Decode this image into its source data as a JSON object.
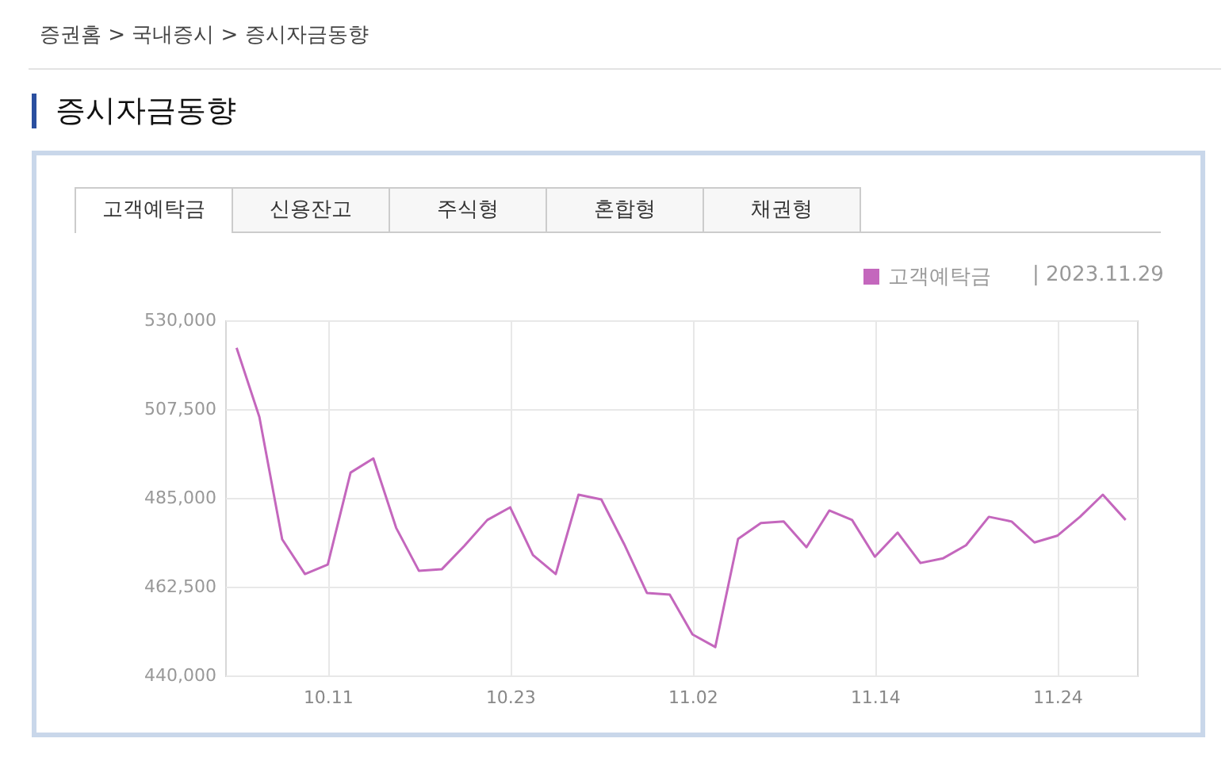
{
  "chart_data": {
    "type": "line",
    "title": "증시자금동향",
    "annotations": [
      "증권홈 > 국내증시 > 증시자금동향",
      "고객예탁금",
      "신용잔고",
      "주식형",
      "혼합형",
      "채권형",
      "|  2023.11.29"
    ],
    "categories": [
      null,
      null,
      null,
      null,
      "10.11",
      null,
      null,
      null,
      null,
      null,
      null,
      null,
      "10.23",
      null,
      null,
      null,
      null,
      null,
      null,
      null,
      "11.02",
      null,
      null,
      null,
      null,
      null,
      null,
      null,
      "11.14",
      null,
      null,
      null,
      null,
      null,
      null,
      null,
      "11.24",
      null,
      null,
      null
    ],
    "series": [
      {
        "name": "고객예탁금",
        "color": "#c467bd",
        "values": [
          523000,
          505500,
          474500,
          465700,
          468100,
          491400,
          495000,
          477400,
          466500,
          466900,
          472900,
          479400,
          482600,
          470500,
          465700,
          485800,
          484600,
          473300,
          460900,
          460500,
          450400,
          447200,
          474600,
          478600,
          479000,
          472500,
          481800,
          479400,
          470100,
          476200,
          468500,
          469700,
          473000,
          480200,
          479000,
          473700,
          475400,
          480200,
          485800,
          479400
        ]
      }
    ],
    "ylim": [
      440000,
      530000
    ],
    "yticks": [
      {
        "value": 440000,
        "label": "440,000"
      },
      {
        "value": 462500,
        "label": "462,500"
      },
      {
        "value": 485000,
        "label": "485,000"
      },
      {
        "value": 507500,
        "label": "507,500"
      },
      {
        "value": 530000,
        "label": "530,000"
      }
    ],
    "grid": true,
    "legend": "top right"
  }
}
